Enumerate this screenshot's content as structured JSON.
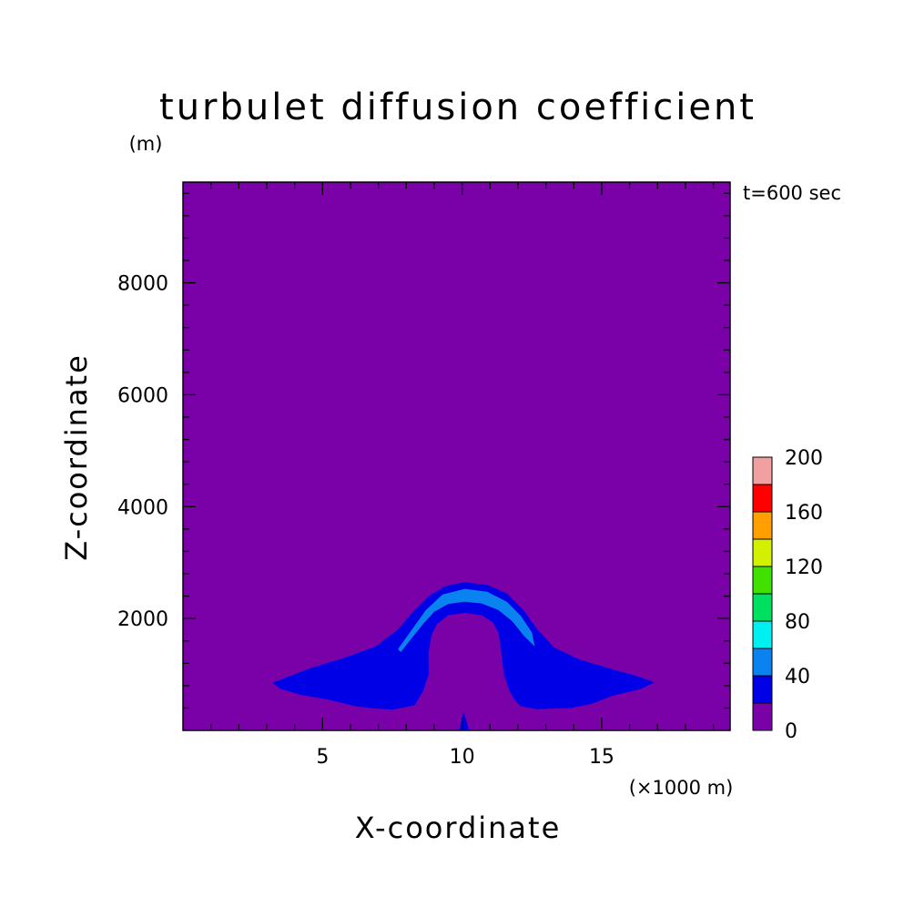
{
  "chart_data": {
    "type": "contour",
    "title": "turbulet diffusion coefficient",
    "xlabel": "X-coordinate",
    "ylabel": "Z-coordinate",
    "x_unit": "(×1000 m)",
    "y_unit": "(m)",
    "time_label": "t=600 sec",
    "xlim": [
      0,
      19.6
    ],
    "ylim": [
      0,
      9800
    ],
    "x_ticks": [
      5,
      10,
      15
    ],
    "y_ticks": [
      2000,
      4000,
      6000,
      8000
    ],
    "background_level": "0-20",
    "colorbar": {
      "levels": [
        0,
        20,
        40,
        60,
        80,
        100,
        120,
        140,
        160,
        180,
        200
      ],
      "tick_labels": [
        "0",
        "40",
        "80",
        "120",
        "160",
        "200"
      ],
      "colors": [
        "#7a00a8",
        "#0000e6",
        "#0a82f0",
        "#00f0f0",
        "#00e060",
        "#40e000",
        "#d2f000",
        "#ffa000",
        "#ff0000",
        "#f0a0a0"
      ]
    },
    "regions": [
      {
        "level": "20-40",
        "color": "#0000e6",
        "polygon": [
          [
            3.2,
            850
          ],
          [
            4.5,
            1100
          ],
          [
            5.8,
            1300
          ],
          [
            6.9,
            1500
          ],
          [
            7.7,
            1800
          ],
          [
            8.3,
            2150
          ],
          [
            8.8,
            2400
          ],
          [
            9.4,
            2580
          ],
          [
            10.1,
            2650
          ],
          [
            10.9,
            2600
          ],
          [
            11.6,
            2450
          ],
          [
            12.2,
            2150
          ],
          [
            12.7,
            1800
          ],
          [
            13.3,
            1480
          ],
          [
            14.2,
            1270
          ],
          [
            15.2,
            1120
          ],
          [
            16.2,
            980
          ],
          [
            16.9,
            860
          ],
          [
            16.4,
            740
          ],
          [
            15.4,
            620
          ],
          [
            14.6,
            470
          ],
          [
            13.9,
            400
          ],
          [
            13.3,
            390
          ],
          [
            12.7,
            380
          ],
          [
            12.1,
            430
          ],
          [
            11.9,
            530
          ],
          [
            11.7,
            700
          ],
          [
            11.5,
            1000
          ],
          [
            11.4,
            1400
          ],
          [
            11.3,
            1750
          ],
          [
            11.1,
            1930
          ],
          [
            10.7,
            2060
          ],
          [
            10.1,
            2100
          ],
          [
            9.5,
            2060
          ],
          [
            9.1,
            1900
          ],
          [
            8.9,
            1700
          ],
          [
            8.8,
            1400
          ],
          [
            8.8,
            1000
          ],
          [
            8.6,
            700
          ],
          [
            8.3,
            450
          ],
          [
            7.5,
            370
          ],
          [
            6.9,
            390
          ],
          [
            6.2,
            430
          ],
          [
            5.2,
            550
          ],
          [
            4.2,
            640
          ],
          [
            3.5,
            740
          ]
        ]
      },
      {
        "level": "40-60",
        "color": "#0a82f0",
        "polygon": [
          [
            7.7,
            1450
          ],
          [
            8.2,
            1800
          ],
          [
            8.7,
            2150
          ],
          [
            9.3,
            2430
          ],
          [
            10.1,
            2530
          ],
          [
            10.9,
            2480
          ],
          [
            11.6,
            2300
          ],
          [
            12.1,
            2050
          ],
          [
            12.5,
            1750
          ],
          [
            12.6,
            1500
          ],
          [
            12.2,
            1700
          ],
          [
            11.8,
            1950
          ],
          [
            11.3,
            2150
          ],
          [
            10.7,
            2270
          ],
          [
            10.1,
            2300
          ],
          [
            9.5,
            2260
          ],
          [
            9.0,
            2120
          ],
          [
            8.6,
            1900
          ],
          [
            8.2,
            1650
          ],
          [
            7.8,
            1400
          ]
        ]
      },
      {
        "level": "20-40",
        "color": "#0000e6",
        "polygon": [
          [
            9.9,
            0
          ],
          [
            10.05,
            340
          ],
          [
            10.25,
            0
          ]
        ]
      }
    ]
  }
}
